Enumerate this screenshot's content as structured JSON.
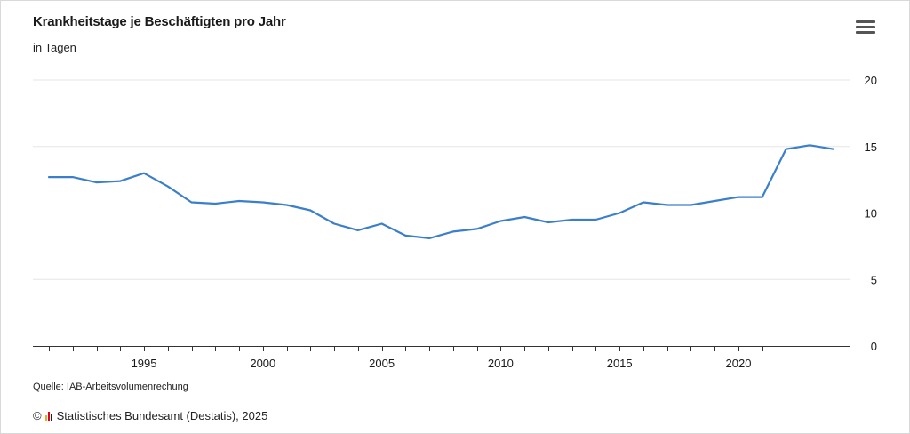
{
  "title": "Krankheitstage je Beschäftigten pro Jahr",
  "subtitle": "in Tagen",
  "source": "Quelle: IAB-Arbeitsvolumenrechung",
  "credit": {
    "copyright_symbol": "©",
    "text": "Statistisches Bundesamt (Destatis), 2025"
  },
  "menu": {
    "icon": "hamburger-menu-icon"
  },
  "colors": {
    "line": "#3b7fcc",
    "grid": "#e6e6e6",
    "axis": "#333333",
    "logo": [
      "#f5a623",
      "#e2001a",
      "#222222"
    ]
  },
  "chart_data": {
    "type": "line",
    "title": "Krankheitstage je Beschäftigten pro Jahr",
    "subtitle": "in Tagen",
    "xlabel": "",
    "ylabel": "",
    "y_axis_position": "right",
    "ylim": [
      0,
      20
    ],
    "y_ticks": [
      0,
      5,
      10,
      15,
      20
    ],
    "xlim": [
      1991,
      2024
    ],
    "x_tick_labels": [
      1995,
      2000,
      2005,
      2010,
      2015,
      2020
    ],
    "grid": true,
    "legend": "none",
    "x": [
      1991,
      1992,
      1993,
      1994,
      1995,
      1996,
      1997,
      1998,
      1999,
      2000,
      2001,
      2002,
      2003,
      2004,
      2005,
      2006,
      2007,
      2008,
      2009,
      2010,
      2011,
      2012,
      2013,
      2014,
      2015,
      2016,
      2017,
      2018,
      2019,
      2020,
      2021,
      2022,
      2023,
      2024
    ],
    "values": [
      12.7,
      12.7,
      12.3,
      12.4,
      13.0,
      12.0,
      10.8,
      10.7,
      10.9,
      10.8,
      10.6,
      10.2,
      9.2,
      8.7,
      9.2,
      8.3,
      8.1,
      8.6,
      8.8,
      9.4,
      9.7,
      9.3,
      9.5,
      9.5,
      10.0,
      10.8,
      10.6,
      10.6,
      10.9,
      11.2,
      11.2,
      14.8,
      15.1,
      14.8
    ]
  }
}
